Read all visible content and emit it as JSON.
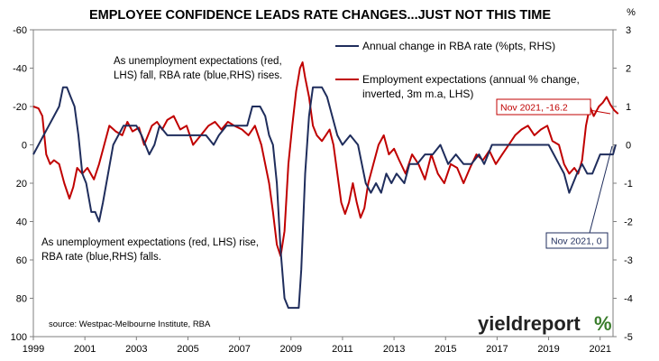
{
  "chart_data": {
    "type": "line",
    "title": "EMPLOYEE CONFIDENCE LEADS RATE CHANGES...JUST NOT THIS TIME",
    "right_axis_unit": "%",
    "x_range": [
      1999,
      2021.5
    ],
    "x_ticks": [
      {
        "value": 1999,
        "label": "1999"
      },
      {
        "value": 2001,
        "label": "2001"
      },
      {
        "value": 2003,
        "label": "2003"
      },
      {
        "value": 2005,
        "label": "2005"
      },
      {
        "value": 2007,
        "label": "2007"
      },
      {
        "value": 2009,
        "label": "2009"
      },
      {
        "value": 2011,
        "label": "2011"
      },
      {
        "value": 2013,
        "label": "2013"
      },
      {
        "value": 2015,
        "label": "2015"
      },
      {
        "value": 2017,
        "label": "2017"
      },
      {
        "value": 2019,
        "label": "2019"
      },
      {
        "value": 2021,
        "label": "2021"
      }
    ],
    "y_left": {
      "range": [
        -60,
        100
      ],
      "inverted": true,
      "ticks": [
        {
          "value": -60,
          "label": "-60"
        },
        {
          "value": -40,
          "label": "-40"
        },
        {
          "value": -20,
          "label": "-20"
        },
        {
          "value": 0,
          "label": "0"
        },
        {
          "value": 20,
          "label": "20"
        },
        {
          "value": 40,
          "label": "40"
        },
        {
          "value": 60,
          "label": "60"
        },
        {
          "value": 80,
          "label": "80"
        },
        {
          "value": 100,
          "label": "100"
        }
      ]
    },
    "y_right": {
      "range": [
        -5,
        3
      ],
      "ticks": [
        {
          "value": 3,
          "label": "3"
        },
        {
          "value": 2,
          "label": "2"
        },
        {
          "value": 1,
          "label": "1"
        },
        {
          "value": 0,
          "label": "0"
        },
        {
          "value": -1,
          "label": "-1"
        },
        {
          "value": -2,
          "label": "-2"
        },
        {
          "value": -3,
          "label": "-3"
        },
        {
          "value": -4,
          "label": "-4"
        },
        {
          "value": -5,
          "label": "-5"
        }
      ]
    },
    "grid": false,
    "legend_position": "top-right",
    "series": [
      {
        "name": "Annual change in RBA rate (%pts, RHS)",
        "axis": "right",
        "color": "#1f2d5c",
        "points": [
          [
            1999.0,
            -0.25
          ],
          [
            1999.2,
            0.0
          ],
          [
            1999.4,
            0.25
          ],
          [
            1999.6,
            0.5
          ],
          [
            1999.8,
            0.75
          ],
          [
            2000.0,
            1.0
          ],
          [
            2000.15,
            1.5
          ],
          [
            2000.3,
            1.5
          ],
          [
            2000.45,
            1.25
          ],
          [
            2000.6,
            1.0
          ],
          [
            2000.75,
            0.25
          ],
          [
            2000.9,
            -0.75
          ],
          [
            2001.05,
            -1.0
          ],
          [
            2001.25,
            -1.75
          ],
          [
            2001.4,
            -1.75
          ],
          [
            2001.55,
            -2.0
          ],
          [
            2001.7,
            -1.5
          ],
          [
            2001.9,
            -0.75
          ],
          [
            2002.1,
            0.0
          ],
          [
            2002.3,
            0.25
          ],
          [
            2002.5,
            0.5
          ],
          [
            2002.8,
            0.5
          ],
          [
            2003.0,
            0.5
          ],
          [
            2003.2,
            0.25
          ],
          [
            2003.5,
            -0.25
          ],
          [
            2003.7,
            0.0
          ],
          [
            2003.9,
            0.5
          ],
          [
            2004.2,
            0.25
          ],
          [
            2004.5,
            0.25
          ],
          [
            2004.8,
            0.25
          ],
          [
            2005.1,
            0.25
          ],
          [
            2005.4,
            0.25
          ],
          [
            2005.7,
            0.25
          ],
          [
            2006.0,
            0.0
          ],
          [
            2006.2,
            0.25
          ],
          [
            2006.5,
            0.5
          ],
          [
            2006.8,
            0.5
          ],
          [
            2007.0,
            0.5
          ],
          [
            2007.3,
            0.5
          ],
          [
            2007.5,
            1.0
          ],
          [
            2007.8,
            1.0
          ],
          [
            2008.0,
            0.75
          ],
          [
            2008.15,
            0.25
          ],
          [
            2008.3,
            0.0
          ],
          [
            2008.45,
            -1.0
          ],
          [
            2008.6,
            -2.75
          ],
          [
            2008.75,
            -4.0
          ],
          [
            2008.9,
            -4.25
          ],
          [
            2009.1,
            -4.25
          ],
          [
            2009.3,
            -4.25
          ],
          [
            2009.4,
            -3.25
          ],
          [
            2009.55,
            -0.75
          ],
          [
            2009.7,
            0.75
          ],
          [
            2009.85,
            1.5
          ],
          [
            2010.0,
            1.5
          ],
          [
            2010.2,
            1.5
          ],
          [
            2010.4,
            1.25
          ],
          [
            2010.6,
            0.75
          ],
          [
            2010.8,
            0.25
          ],
          [
            2011.0,
            0.0
          ],
          [
            2011.3,
            0.25
          ],
          [
            2011.6,
            0.0
          ],
          [
            2011.75,
            -0.5
          ],
          [
            2011.9,
            -1.0
          ],
          [
            2012.1,
            -1.25
          ],
          [
            2012.3,
            -1.0
          ],
          [
            2012.5,
            -1.25
          ],
          [
            2012.7,
            -0.75
          ],
          [
            2012.9,
            -1.0
          ],
          [
            2013.1,
            -0.75
          ],
          [
            2013.4,
            -1.0
          ],
          [
            2013.6,
            -0.5
          ],
          [
            2013.9,
            -0.5
          ],
          [
            2014.2,
            -0.25
          ],
          [
            2014.5,
            -0.25
          ],
          [
            2014.8,
            0.0
          ],
          [
            2015.1,
            -0.5
          ],
          [
            2015.4,
            -0.25
          ],
          [
            2015.7,
            -0.5
          ],
          [
            2016.0,
            -0.5
          ],
          [
            2016.3,
            -0.25
          ],
          [
            2016.5,
            -0.5
          ],
          [
            2016.8,
            0.0
          ],
          [
            2017.1,
            0.0
          ],
          [
            2017.5,
            0.0
          ],
          [
            2017.9,
            0.0
          ],
          [
            2018.3,
            0.0
          ],
          [
            2018.7,
            0.0
          ],
          [
            2019.0,
            0.0
          ],
          [
            2019.2,
            -0.25
          ],
          [
            2019.4,
            -0.5
          ],
          [
            2019.6,
            -0.75
          ],
          [
            2019.8,
            -1.25
          ],
          [
            2019.95,
            -1.0
          ],
          [
            2020.1,
            -0.75
          ],
          [
            2020.3,
            -0.5
          ],
          [
            2020.5,
            -0.75
          ],
          [
            2020.7,
            -0.75
          ],
          [
            2020.85,
            -0.5
          ],
          [
            2021.0,
            -0.25
          ],
          [
            2021.3,
            -0.25
          ],
          [
            2021.5,
            -0.25
          ],
          [
            2021.6,
            0.0
          ]
        ]
      },
      {
        "name": "Employment expectations (annual % change, inverted, 3m m.a, LHS)",
        "axis": "left",
        "color": "#c00000",
        "points": [
          [
            1999.0,
            -20
          ],
          [
            1999.2,
            -19
          ],
          [
            1999.35,
            -15
          ],
          [
            1999.5,
            5
          ],
          [
            1999.65,
            10
          ],
          [
            1999.8,
            8
          ],
          [
            2000.0,
            10
          ],
          [
            2000.2,
            20
          ],
          [
            2000.4,
            28
          ],
          [
            2000.55,
            22
          ],
          [
            2000.7,
            12
          ],
          [
            2000.9,
            15
          ],
          [
            2001.1,
            12
          ],
          [
            2001.35,
            18
          ],
          [
            2001.55,
            10
          ],
          [
            2001.75,
            0
          ],
          [
            2001.95,
            -10
          ],
          [
            2002.2,
            -7
          ],
          [
            2002.45,
            -5
          ],
          [
            2002.65,
            -12
          ],
          [
            2002.85,
            -7
          ],
          [
            2003.1,
            -9
          ],
          [
            2003.3,
            0
          ],
          [
            2003.45,
            -5
          ],
          [
            2003.6,
            -10
          ],
          [
            2003.8,
            -12
          ],
          [
            2004.0,
            -8
          ],
          [
            2004.2,
            -13
          ],
          [
            2004.45,
            -15
          ],
          [
            2004.7,
            -8
          ],
          [
            2004.95,
            -10
          ],
          [
            2005.2,
            0
          ],
          [
            2005.5,
            -5
          ],
          [
            2005.8,
            -10
          ],
          [
            2006.05,
            -12
          ],
          [
            2006.3,
            -8
          ],
          [
            2006.55,
            -12
          ],
          [
            2006.8,
            -10
          ],
          [
            2007.1,
            -8
          ],
          [
            2007.35,
            -5
          ],
          [
            2007.6,
            -10
          ],
          [
            2007.85,
            0
          ],
          [
            2008.0,
            10
          ],
          [
            2008.15,
            20
          ],
          [
            2008.3,
            35
          ],
          [
            2008.45,
            52
          ],
          [
            2008.6,
            58
          ],
          [
            2008.75,
            45
          ],
          [
            2008.9,
            10
          ],
          [
            2009.05,
            -10
          ],
          [
            2009.2,
            -28
          ],
          [
            2009.35,
            -40
          ],
          [
            2009.45,
            -43
          ],
          [
            2009.55,
            -35
          ],
          [
            2009.7,
            -25
          ],
          [
            2009.85,
            -10
          ],
          [
            2010.0,
            -5
          ],
          [
            2010.2,
            -2
          ],
          [
            2010.35,
            -5
          ],
          [
            2010.5,
            -8
          ],
          [
            2010.65,
            0
          ],
          [
            2010.8,
            15
          ],
          [
            2010.95,
            30
          ],
          [
            2011.1,
            36
          ],
          [
            2011.25,
            30
          ],
          [
            2011.4,
            20
          ],
          [
            2011.55,
            30
          ],
          [
            2011.7,
            38
          ],
          [
            2011.85,
            33
          ],
          [
            2012.0,
            20
          ],
          [
            2012.2,
            10
          ],
          [
            2012.4,
            0
          ],
          [
            2012.6,
            -5
          ],
          [
            2012.8,
            5
          ],
          [
            2013.0,
            2
          ],
          [
            2013.2,
            8
          ],
          [
            2013.45,
            15
          ],
          [
            2013.7,
            5
          ],
          [
            2013.95,
            10
          ],
          [
            2014.2,
            18
          ],
          [
            2014.45,
            5
          ],
          [
            2014.7,
            15
          ],
          [
            2014.95,
            20
          ],
          [
            2015.2,
            10
          ],
          [
            2015.45,
            12
          ],
          [
            2015.7,
            20
          ],
          [
            2015.95,
            12
          ],
          [
            2016.2,
            5
          ],
          [
            2016.45,
            8
          ],
          [
            2016.7,
            3
          ],
          [
            2016.95,
            10
          ],
          [
            2017.2,
            5
          ],
          [
            2017.45,
            0
          ],
          [
            2017.7,
            -5
          ],
          [
            2017.95,
            -8
          ],
          [
            2018.2,
            -10
          ],
          [
            2018.45,
            -5
          ],
          [
            2018.7,
            -8
          ],
          [
            2018.95,
            -10
          ],
          [
            2019.15,
            -2
          ],
          [
            2019.4,
            0
          ],
          [
            2019.6,
            10
          ],
          [
            2019.8,
            15
          ],
          [
            2020.0,
            12
          ],
          [
            2020.15,
            15
          ],
          [
            2020.3,
            8
          ],
          [
            2020.45,
            -10
          ],
          [
            2020.6,
            -20
          ],
          [
            2020.75,
            -15
          ],
          [
            2020.95,
            -20
          ],
          [
            2021.1,
            -22
          ],
          [
            2021.25,
            -25
          ],
          [
            2021.4,
            -21
          ],
          [
            2021.55,
            -18
          ],
          [
            2021.7,
            -16.2
          ]
        ]
      }
    ],
    "annotations": [
      {
        "id": "red_callout",
        "text": "Nov 2021, -16.2",
        "color": "#c00000"
      },
      {
        "id": "blue_callout",
        "text": "Nov 2021, 0",
        "color": "#1f2d5c"
      }
    ]
  },
  "text": {
    "legend_blue": "Annual change in RBA rate (%pts, RHS)",
    "legend_red_line1": "Employment expectations (annual % change,",
    "legend_red_line2": "inverted, 3m m.a, LHS)",
    "note_top_line1": "As unemployment expectations (red,",
    "note_top_line2": "LHS) fall, RBA rate (blue,RHS) rises.",
    "note_bottom_line1": "As unemployment expectations (red, LHS) rise,",
    "note_bottom_line2": "RBA rate (blue,RHS) falls.",
    "source": "source: Westpac-Melbourne Institute, RBA",
    "brand_main": "yieldreport",
    "brand_symbol": "%"
  }
}
